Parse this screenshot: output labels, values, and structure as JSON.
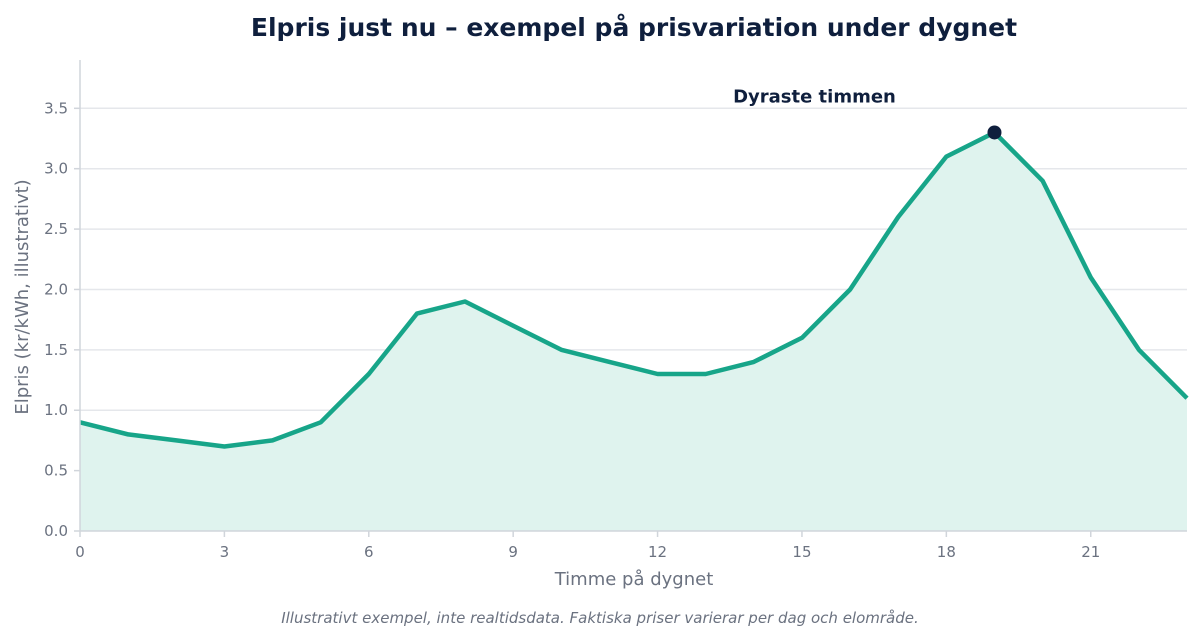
{
  "chart_data": {
    "type": "area",
    "title": "Elpris just nu – exempel på prisvariation under dygnet",
    "xlabel": "Timme på dygnet",
    "ylabel": "Elpris (kr/kWh, illustrativt)",
    "x": [
      0,
      1,
      2,
      3,
      4,
      5,
      6,
      7,
      8,
      9,
      10,
      11,
      12,
      13,
      14,
      15,
      16,
      17,
      18,
      19,
      20,
      21,
      22,
      23
    ],
    "series": [
      {
        "values": [
          0.9,
          0.8,
          0.75,
          0.7,
          0.75,
          0.9,
          1.3,
          1.8,
          1.9,
          1.7,
          1.5,
          1.4,
          1.3,
          1.3,
          1.4,
          1.6,
          2.0,
          2.6,
          3.1,
          3.3,
          2.9,
          2.1,
          1.5,
          1.1
        ]
      }
    ],
    "xlim": [
      0,
      23
    ],
    "ylim": [
      0,
      3.9
    ],
    "xticks": [
      0,
      3,
      6,
      9,
      12,
      15,
      18,
      21
    ],
    "xtick_labels": [
      "0",
      "3",
      "6",
      "9",
      "12",
      "15",
      "18",
      "21"
    ],
    "yticks": [
      0,
      0.5,
      1,
      1.5,
      2,
      2.5,
      3,
      3.5
    ],
    "ytick_labels": [
      "0.0",
      "0.5",
      "1.0",
      "1.5",
      "2.0",
      "2.5",
      "3.0",
      "3.5"
    ],
    "grid": "horizontal",
    "annotation": {
      "text": "Dyraste timmen",
      "x": 19,
      "y": 3.3
    },
    "footnote": "Illustrativt exempel, inte realtidsdata. Faktiska priser varierar per dag och elområde.",
    "colors": {
      "line": "#17a589",
      "fill": "#dff3ee",
      "marker": "#0f1f3d",
      "grid": "#e5e7eb",
      "axis": "#d1d5db",
      "text": "#6b7280",
      "title": "#0f1f3d"
    }
  }
}
